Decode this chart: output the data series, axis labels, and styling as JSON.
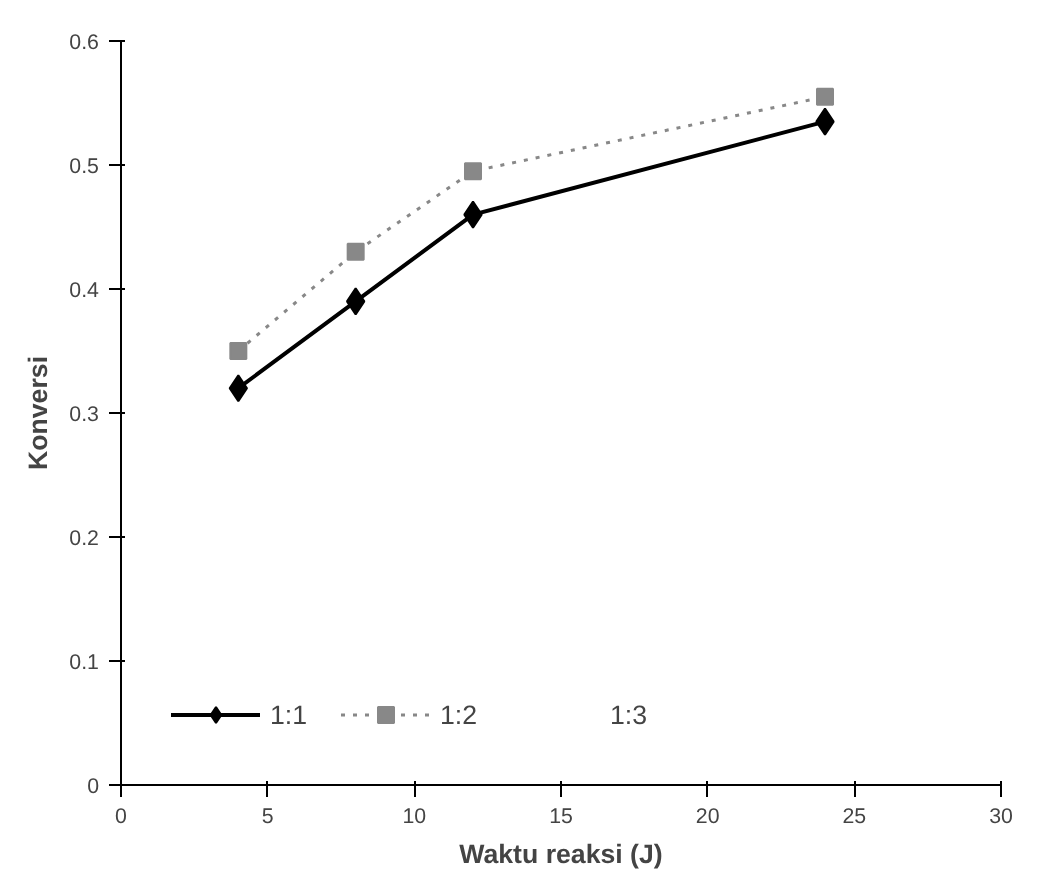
{
  "chart_data": {
    "type": "line",
    "xlabel": "Waktu reaksi (J)",
    "ylabel": "Konversi",
    "x": [
      4,
      8,
      12,
      24
    ],
    "series": [
      {
        "name": "1:1",
        "color": "#000000",
        "values": [
          0.32,
          0.39,
          0.46,
          0.535
        ],
        "marker": "diamond",
        "line_style": "solid"
      },
      {
        "name": "1:2",
        "color": "#888888",
        "values": [
          0.35,
          0.43,
          0.495,
          0.555
        ],
        "marker": "square",
        "line_style": "dotted"
      },
      {
        "name": "1:3",
        "values": [
          null,
          null,
          null,
          null
        ],
        "marker": "none",
        "line_style": "solid"
      }
    ],
    "xlim": [
      0,
      30
    ],
    "ylim": [
      0,
      0.6
    ],
    "xticks": [
      0,
      5,
      10,
      15,
      20,
      25,
      30
    ],
    "yticks": [
      0,
      0.1,
      0.2,
      0.3,
      0.4,
      0.5,
      0.6
    ],
    "grid": false,
    "legend": "bottom left"
  }
}
